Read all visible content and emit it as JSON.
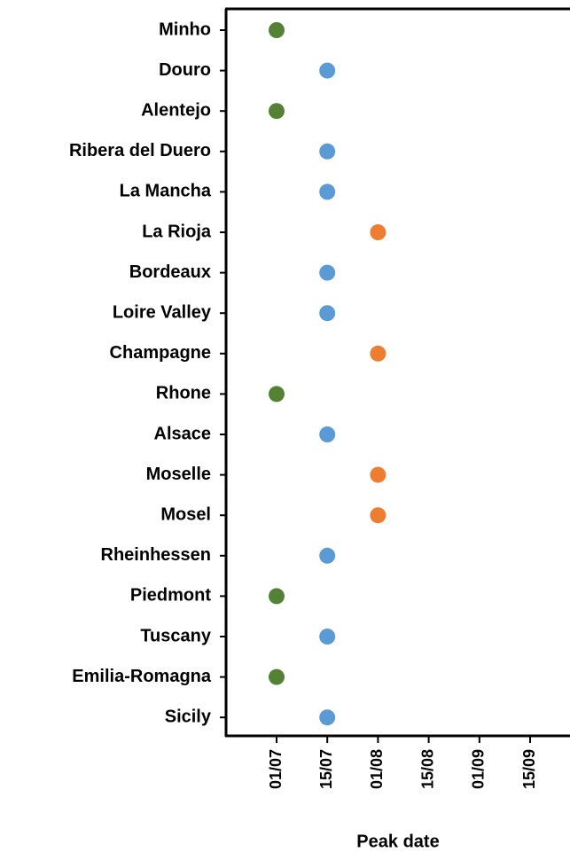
{
  "chart_data": {
    "type": "dot",
    "x_label": "Peak date",
    "categories": [
      "Minho",
      "Douro",
      "Alentejo",
      "Ribera del Duero",
      "La Mancha",
      "La Rioja",
      "Bordeaux",
      "Loire Valley",
      "Champagne",
      "Rhone",
      "Alsace",
      "Moselle",
      "Mosel",
      "Rheinhessen",
      "Piedmont",
      "Tuscany",
      "Emilia-Romagna",
      "Sicily"
    ],
    "values": [
      "01/07",
      "15/07",
      "01/07",
      "15/07",
      "15/07",
      "01/08",
      "15/07",
      "15/07",
      "01/08",
      "01/07",
      "15/07",
      "01/08",
      "01/08",
      "15/07",
      "01/07",
      "15/07",
      "01/07",
      "15/07"
    ],
    "xticks": [
      "01/07",
      "15/07",
      "01/08",
      "15/08",
      "01/09",
      "15/09"
    ],
    "point_colors": {
      "01/07": "#548235",
      "15/07": "#5b9bd5",
      "01/08": "#ed7d31"
    }
  }
}
